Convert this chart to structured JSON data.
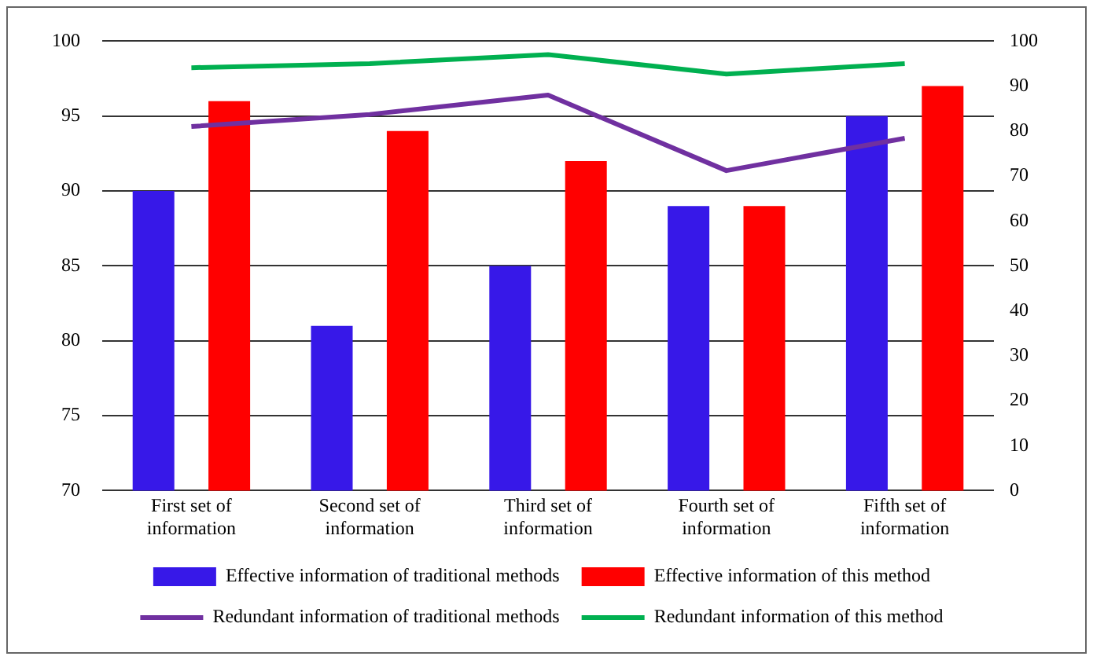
{
  "chart_data": {
    "type": "bar",
    "categories": [
      "First set of information",
      "Second set of information",
      "Third set of information",
      "Fourth set of information",
      "Fifth set of information"
    ],
    "series": [
      {
        "name": "Effective information of traditional methods",
        "color": "#3718e8",
        "values": [
          90,
          81,
          85,
          89,
          95
        ]
      },
      {
        "name": "Effective information of this method",
        "color": "#ff0000",
        "values": [
          96,
          94,
          92,
          89,
          97
        ]
      },
      {
        "name": "Redundant information of traditional methods",
        "type": "line",
        "axis": "y2",
        "color": "#7030a0",
        "values": [
          81,
          83.7,
          88,
          71.2,
          78.4
        ]
      },
      {
        "name": "Redundant information of this method",
        "type": "line",
        "axis": "y2",
        "color": "#00b050",
        "values": [
          94.1,
          95,
          97,
          92.7,
          95
        ]
      }
    ],
    "ylim": [
      70,
      100
    ],
    "yticks": [
      70,
      75,
      80,
      85,
      90,
      95,
      100
    ],
    "y2lim": [
      0,
      100
    ],
    "y2ticks": [
      0,
      10,
      20,
      30,
      40,
      50,
      60,
      70,
      80,
      90,
      100
    ],
    "grid": "y",
    "legend": "bottom",
    "marker": "none",
    "line_style": "solid"
  }
}
